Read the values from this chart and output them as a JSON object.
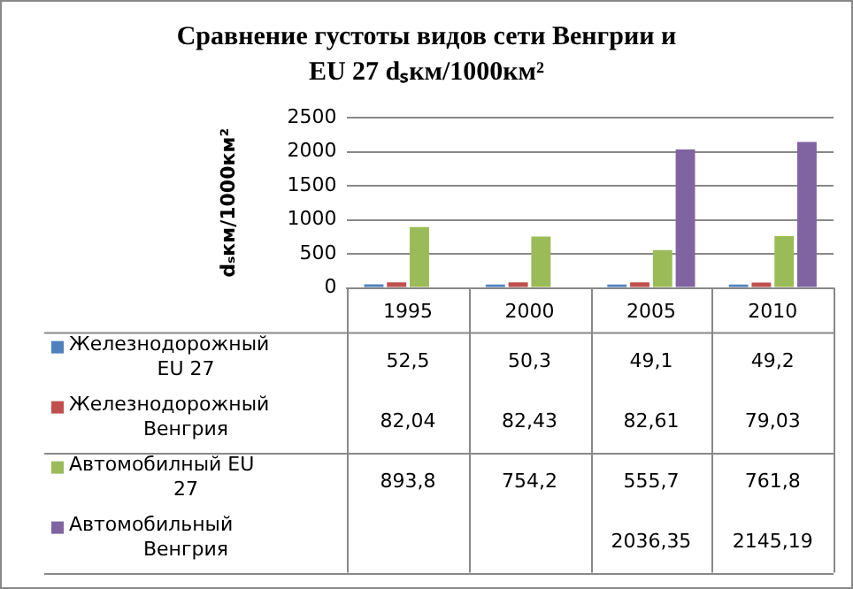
{
  "chart_data": {
    "type": "bar",
    "title": "Сравнение  густоты видов сети Венгрии и EU 27 dₛкм/1000км²",
    "ylabel": "dₛкм/1000км²",
    "categories": [
      "1995",
      "2000",
      "2005",
      "2010"
    ],
    "series": [
      {
        "name": "Железнодорожный EU 27",
        "color": "#4f81bd",
        "values": [
          52.5,
          50.3,
          49.1,
          49.2
        ],
        "value_labels": [
          "52,5",
          "50,3",
          "49,1",
          "49,2"
        ]
      },
      {
        "name": "Железнодорожный Венгрия",
        "color": "#c0504d",
        "values": [
          82.04,
          82.43,
          82.61,
          79.03
        ],
        "value_labels": [
          "82,04",
          "82,43",
          "82,61",
          "79,03"
        ]
      },
      {
        "name": "Автомобилный EU 27",
        "color": "#9bbb59",
        "values": [
          893.8,
          754.2,
          555.7,
          761.8
        ],
        "value_labels": [
          "893,8",
          "754,2",
          "555,7",
          "761,8"
        ]
      },
      {
        "name": "Автомобильный Венгрия",
        "color": "#8064a2",
        "values": [
          null,
          null,
          2036.35,
          2145.19
        ],
        "value_labels": [
          null,
          null,
          "2036,35",
          "2145,19"
        ]
      }
    ],
    "ylim": [
      0,
      2500
    ],
    "yticks": [
      0,
      500,
      1000,
      1500,
      2000,
      2500
    ],
    "grid": "y",
    "legend": "bottom"
  }
}
